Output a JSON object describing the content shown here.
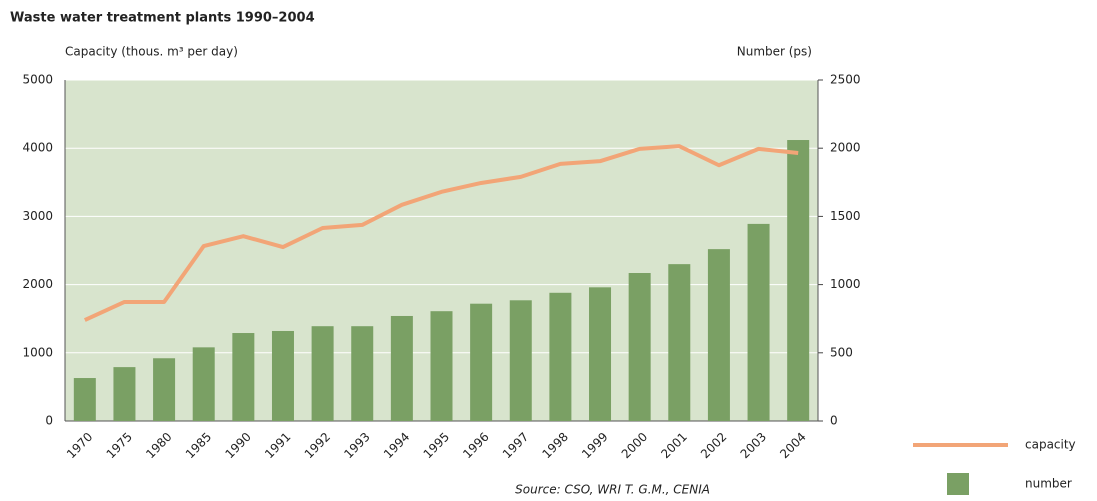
{
  "chart_data": {
    "type": "bar_line",
    "title": "Waste water treatment plants 1990–2004",
    "y_label": "Capacity (thous. m³ per day)",
    "y2_label": "Number (ps)",
    "source": "Source: CSO, WRI T. G.M., CENIA",
    "categories": [
      "1970",
      "1975",
      "1980",
      "1985",
      "1990",
      "1991",
      "1992",
      "1993",
      "1994",
      "1995",
      "1996",
      "1997",
      "1998",
      "1999",
      "2000",
      "2001",
      "2002",
      "2003",
      "2004"
    ],
    "series": [
      {
        "name": "capacity",
        "type": "line",
        "color": "#f2a577",
        "axis": "y",
        "values": [
          1480,
          1745,
          1745,
          2565,
          2710,
          2550,
          2830,
          2875,
          3170,
          3360,
          3490,
          3580,
          3770,
          3810,
          3990,
          4030,
          3750,
          3990,
          3930
        ]
      },
      {
        "name": "number",
        "type": "bar",
        "color": "#7aa064",
        "axis": "y2",
        "values": [
          315,
          395,
          460,
          540,
          645,
          660,
          695,
          695,
          770,
          805,
          860,
          885,
          940,
          980,
          1085,
          1150,
          1260,
          1445,
          2060
        ]
      }
    ],
    "ylim": [
      0,
      5000
    ],
    "yticks": [
      0,
      1000,
      2000,
      3000,
      4000,
      5000
    ],
    "y2lim": [
      0,
      2500
    ],
    "y2ticks": [
      0,
      500,
      1000,
      1500,
      2000,
      2500
    ],
    "grid": true,
    "legend": "lower right"
  }
}
